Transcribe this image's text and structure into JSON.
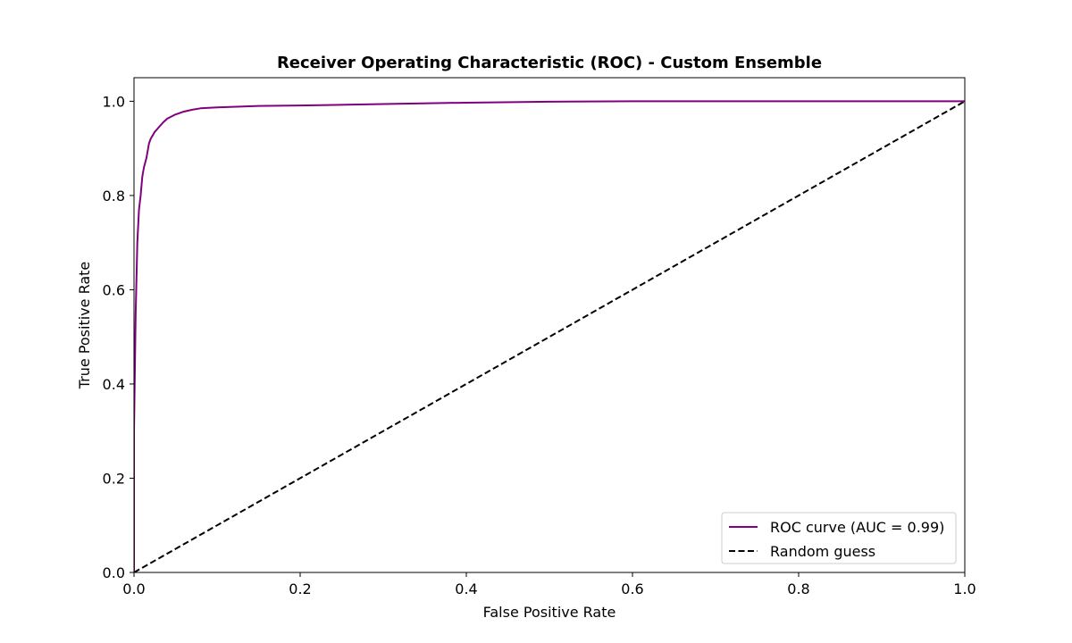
{
  "chart_data": {
    "type": "line",
    "title": "Receiver Operating Characteristic (ROC) - Custom Ensemble",
    "xlabel": "False Positive Rate",
    "ylabel": "True Positive Rate",
    "xlim": [
      0.0,
      1.0
    ],
    "ylim": [
      0.0,
      1.05
    ],
    "xticks": [
      "0.0",
      "0.2",
      "0.4",
      "0.6",
      "0.8",
      "1.0"
    ],
    "yticks": [
      "0.0",
      "0.2",
      "0.4",
      "0.6",
      "0.8",
      "1.0"
    ],
    "grid": false,
    "legend_position": "lower-right",
    "series": [
      {
        "name": "ROC curve (AUC = 0.99)",
        "color": "#800080",
        "style": "solid",
        "x": [
          0.0,
          0.0,
          0.002,
          0.004,
          0.006,
          0.008,
          0.01,
          0.012,
          0.015,
          0.018,
          0.02,
          0.025,
          0.03,
          0.035,
          0.04,
          0.05,
          0.06,
          0.07,
          0.08,
          0.1,
          0.15,
          0.2,
          0.3,
          0.4,
          0.5,
          0.6,
          0.8,
          1.0
        ],
        "y": [
          0.0,
          0.3,
          0.55,
          0.7,
          0.77,
          0.8,
          0.84,
          0.86,
          0.88,
          0.91,
          0.92,
          0.935,
          0.945,
          0.955,
          0.963,
          0.972,
          0.978,
          0.982,
          0.985,
          0.987,
          0.99,
          0.991,
          0.994,
          0.997,
          0.999,
          1.0,
          1.0,
          1.0
        ]
      },
      {
        "name": "Random guess",
        "color": "#000000",
        "style": "dashed",
        "x": [
          0.0,
          1.0
        ],
        "y": [
          0.0,
          1.0
        ]
      }
    ]
  }
}
